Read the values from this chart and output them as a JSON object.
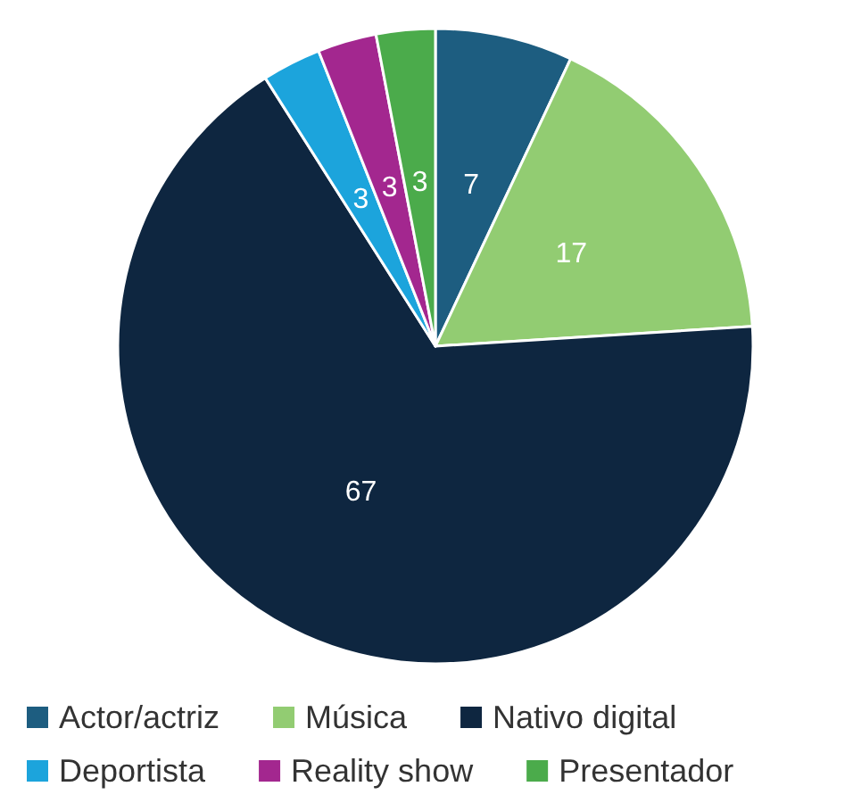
{
  "chart_data": {
    "type": "pie",
    "categories": [
      "Actor/actriz",
      "Música",
      "Nativo digital",
      "Deportista",
      "Reality show",
      "Presentador"
    ],
    "values": [
      7,
      17,
      67,
      3,
      3,
      3
    ],
    "colors": [
      "#1d5d80",
      "#92cc72",
      "#0e2640",
      "#1ca4dc",
      "#a3278f",
      "#4bab4b"
    ],
    "data_labels": true,
    "legend": "bottom"
  }
}
